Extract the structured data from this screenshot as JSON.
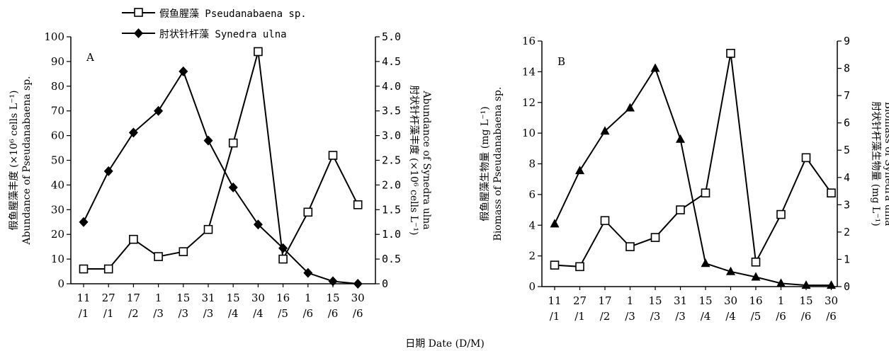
{
  "legend": {
    "s1": "假鱼腥藻 Pseudanabaena sp.",
    "s2": "肘状针杆藻 Synedra ulna"
  },
  "shared_xlabel": "日期 Date (D/M)",
  "chart_data": [
    {
      "type": "line",
      "panel_label": "A",
      "categories": [
        "11/1",
        "27/1",
        "17/2",
        "1/3",
        "15/3",
        "31/3",
        "15/4",
        "30/4",
        "16/5",
        "1/6",
        "15/6",
        "30/6"
      ],
      "tick_top": [
        "11",
        "27",
        "17",
        "1",
        "15",
        "31",
        "15",
        "30",
        "16",
        "1",
        "15",
        "30"
      ],
      "tick_bottom": [
        "/1",
        "/1",
        "/2",
        "/3",
        "/3",
        "/3",
        "/4",
        "/4",
        "/5",
        "/6",
        "/6",
        "/6"
      ],
      "ylabel_left": [
        "假鱼腥藻丰度 (×10⁶ cells L⁻¹)",
        "Abundance of Pseudanabaena sp."
      ],
      "ylabel_right": [
        "肘状针杆藻丰度 (×10⁶ cells L⁻¹)",
        "Abundance of Synedra ulna"
      ],
      "ylim_left": [
        0,
        100
      ],
      "yticks_left": [
        "0",
        "10",
        "20",
        "30",
        "40",
        "50",
        "60",
        "70",
        "80",
        "90",
        "100"
      ],
      "ylim_right": [
        0,
        5
      ],
      "yticks_right": [
        "0",
        "0.5",
        "1.0",
        "1.5",
        "2.0",
        "2.5",
        "3.0",
        "3.5",
        "4.0",
        "4.5",
        "5.0"
      ],
      "series": [
        {
          "name": "假鱼腥藻 Pseudanabaena sp.",
          "axis": "left",
          "marker": "square-open",
          "values": [
            6,
            6,
            18,
            11,
            13,
            22,
            57,
            94,
            10,
            29,
            52,
            32
          ]
        },
        {
          "name": "肘状针杆藻 Synedra ulna",
          "axis": "right",
          "marker": "diamond-filled",
          "values": [
            1.25,
            2.28,
            3.06,
            3.5,
            4.3,
            2.9,
            1.95,
            1.2,
            0.72,
            0.22,
            0.05,
            0.0
          ]
        }
      ]
    },
    {
      "type": "line",
      "panel_label": "B",
      "categories": [
        "11/1",
        "27/1",
        "17/2",
        "1/3",
        "15/3",
        "31/3",
        "15/4",
        "30/4",
        "16/5",
        "1/6",
        "15/6",
        "30/6"
      ],
      "tick_top": [
        "11",
        "27",
        "17",
        "1",
        "15",
        "31",
        "15",
        "30",
        "16",
        "1",
        "15",
        "30"
      ],
      "tick_bottom": [
        "/1",
        "/1",
        "/2",
        "/3",
        "/3",
        "/3",
        "/4",
        "/4",
        "/5",
        "/6",
        "/6",
        "/6"
      ],
      "ylabel_left": [
        "假鱼腥藻生物量 (mg L⁻¹)",
        "Biomass of Pseudanabaena sp."
      ],
      "ylabel_right": [
        "肘状针杆藻生物量 (mg L⁻¹)",
        "Biomass of Synedra ulna"
      ],
      "ylim_left": [
        0,
        16
      ],
      "yticks_left": [
        "0",
        "2",
        "4",
        "6",
        "8",
        "10",
        "12",
        "14",
        "16"
      ],
      "ylim_right": [
        0,
        9
      ],
      "yticks_right": [
        "0",
        "1",
        "2",
        "3",
        "4",
        "5",
        "6",
        "7",
        "8",
        "9"
      ],
      "series": [
        {
          "name": "假鱼腥藻 Pseudanabaena sp.",
          "axis": "left",
          "marker": "square-open",
          "values": [
            1.4,
            1.3,
            4.3,
            2.6,
            3.2,
            5.0,
            6.1,
            15.2,
            1.6,
            4.7,
            8.4,
            6.1
          ]
        },
        {
          "name": "肘状针杆藻 Synedra ulna",
          "axis": "right",
          "marker": "triangle-filled",
          "values": [
            2.3,
            4.25,
            5.7,
            6.55,
            8.0,
            5.4,
            0.85,
            0.55,
            0.35,
            0.12,
            0.05,
            0.05
          ]
        }
      ]
    }
  ]
}
